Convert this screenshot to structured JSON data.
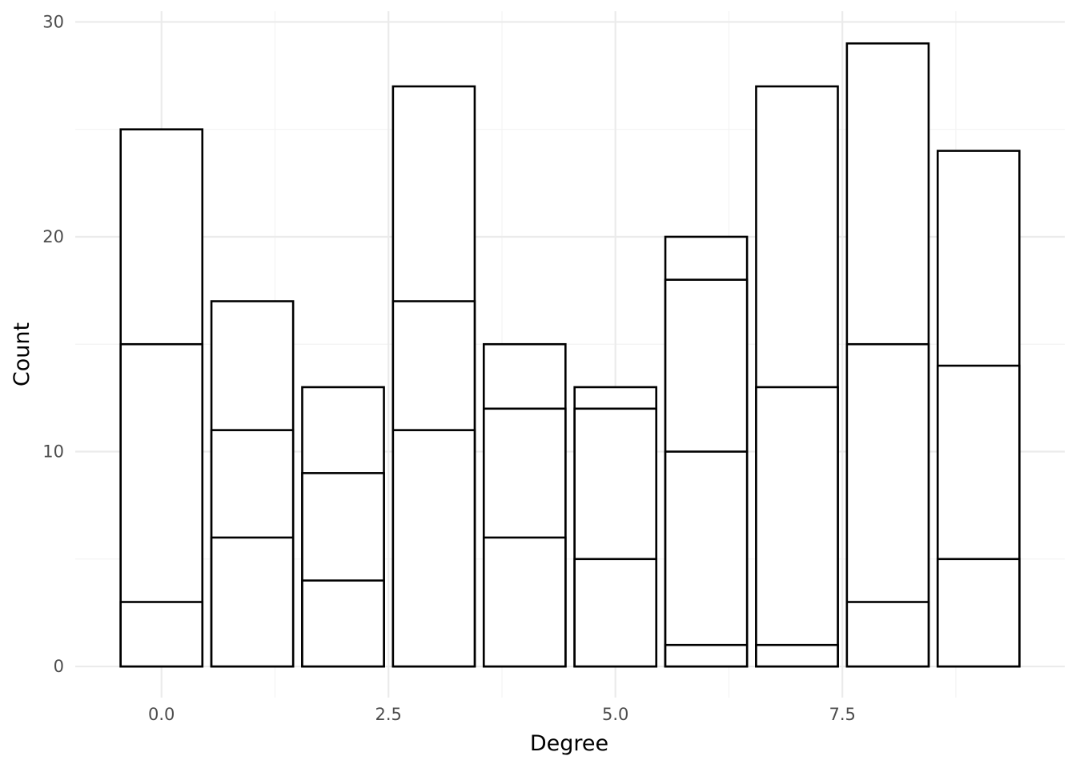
{
  "chart_data": {
    "type": "bar",
    "stacked": true,
    "xlabel": "Degree",
    "ylabel": "Count",
    "xlim": [
      -0.95,
      9.95
    ],
    "ylim": [
      -1.45,
      30.5
    ],
    "x_ticks": [
      0.0,
      2.5,
      5.0,
      7.5
    ],
    "x_tick_labels": [
      "0.0",
      "2.5",
      "5.0",
      "7.5"
    ],
    "y_ticks": [
      0,
      10,
      20,
      30
    ],
    "y_tick_labels": [
      "0",
      "10",
      "20",
      "30"
    ],
    "grid": true,
    "fill_color": "#ffffff",
    "outline_color": "#000000",
    "bar_width": 0.9,
    "bars": [
      {
        "x": 0,
        "stack_boundaries": [
          3,
          15,
          25
        ]
      },
      {
        "x": 1,
        "stack_boundaries": [
          6,
          11,
          17
        ]
      },
      {
        "x": 2,
        "stack_boundaries": [
          4,
          9,
          13
        ]
      },
      {
        "x": 3,
        "stack_boundaries": [
          11,
          17,
          27
        ]
      },
      {
        "x": 4,
        "stack_boundaries": [
          6,
          12,
          15
        ]
      },
      {
        "x": 5,
        "stack_boundaries": [
          5,
          12,
          13
        ]
      },
      {
        "x": 6,
        "stack_boundaries": [
          1,
          10,
          18,
          20
        ]
      },
      {
        "x": 7,
        "stack_boundaries": [
          1,
          13,
          27
        ]
      },
      {
        "x": 8,
        "stack_boundaries": [
          3,
          15,
          29
        ]
      },
      {
        "x": 9,
        "stack_boundaries": [
          5,
          14,
          24
        ]
      }
    ]
  }
}
